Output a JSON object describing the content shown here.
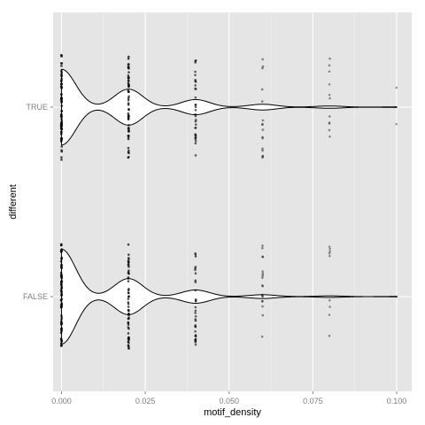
{
  "chart_data": {
    "type": "violin",
    "orientation": "horizontal",
    "xlabel": "motif_density",
    "ylabel": "different",
    "xlim": [
      -0.0025,
      0.1045
    ],
    "x_ticks": [
      0.0,
      0.025,
      0.05,
      0.075,
      0.1
    ],
    "x_tick_labels": [
      "0.000",
      "0.025",
      "0.050",
      "0.075",
      "0.100"
    ],
    "categories": [
      "TRUE",
      "FALSE"
    ],
    "grid": true,
    "legend": "none",
    "colors": {
      "panel": "#e5e5e5",
      "grid": "#ffffff",
      "violin_fill": "#ffffff",
      "violin_outline": "#000000",
      "points": "#000000",
      "tick_label": "#7f7f7f"
    },
    "violins": [
      {
        "category": "TRUE",
        "peaks": [
          {
            "x": 0.0,
            "half_width": 0.4
          },
          {
            "x": 0.02,
            "half_width": 0.19
          },
          {
            "x": 0.04,
            "half_width": 0.08
          },
          {
            "x": 0.06,
            "half_width": 0.03
          },
          {
            "x": 0.08,
            "half_width": 0.012
          },
          {
            "x": 0.1,
            "half_width": 0.003
          }
        ]
      },
      {
        "category": "FALSE",
        "peaks": [
          {
            "x": 0.0,
            "half_width": 0.5
          },
          {
            "x": 0.02,
            "half_width": 0.19
          },
          {
            "x": 0.04,
            "half_width": 0.07
          },
          {
            "x": 0.06,
            "half_width": 0.02
          },
          {
            "x": 0.08,
            "half_width": 0.008
          },
          {
            "x": 0.1,
            "half_width": 0.002
          }
        ]
      }
    ],
    "points": [
      {
        "category": "TRUE",
        "x": 0.0,
        "n": 70,
        "spread": 0.28,
        "alpha": 0.75
      },
      {
        "category": "TRUE",
        "x": 0.02,
        "n": 55,
        "spread": 0.28,
        "alpha": 0.7
      },
      {
        "category": "TRUE",
        "x": 0.04,
        "n": 32,
        "spread": 0.27,
        "alpha": 0.6
      },
      {
        "category": "TRUE",
        "x": 0.06,
        "n": 16,
        "spread": 0.27,
        "alpha": 0.45
      },
      {
        "category": "TRUE",
        "x": 0.08,
        "n": 11,
        "spread": 0.27,
        "alpha": 0.4
      },
      {
        "category": "TRUE",
        "x": 0.1,
        "n": 2,
        "spread": 0.13,
        "alpha": 0.35
      },
      {
        "category": "FALSE",
        "x": 0.0,
        "n": 75,
        "spread": 0.28,
        "alpha": 0.75
      },
      {
        "category": "FALSE",
        "x": 0.02,
        "n": 55,
        "spread": 0.28,
        "alpha": 0.7
      },
      {
        "category": "FALSE",
        "x": 0.04,
        "n": 32,
        "spread": 0.27,
        "alpha": 0.6
      },
      {
        "category": "FALSE",
        "x": 0.06,
        "n": 18,
        "spread": 0.27,
        "alpha": 0.45
      },
      {
        "category": "FALSE",
        "x": 0.08,
        "n": 9,
        "spread": 0.27,
        "alpha": 0.4
      },
      {
        "category": "FALSE",
        "x": 0.1,
        "n": 1,
        "spread": 0.0,
        "alpha": 0.35
      }
    ]
  }
}
